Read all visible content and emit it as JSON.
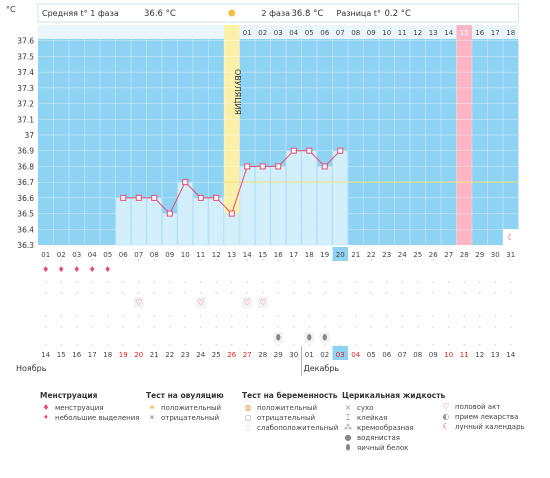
{
  "header": {
    "phase1_label": "Средняя t° 1 фаза",
    "phase1_value": "36.6 °C",
    "phase2_label": "2 фаза",
    "phase2_value": "36.8 °C",
    "diff_label": "Разница t°",
    "diff_value": "0.2 °C"
  },
  "chart_data": {
    "type": "line",
    "ylabel": "°C",
    "ylim": [
      36.3,
      37.7
    ],
    "y_ticks": [
      "37.6",
      "37.5",
      "37.4",
      "37.3",
      "37.2",
      "37.1",
      "37",
      "36.9",
      "36.8",
      "36.7",
      "36.6",
      "36.5",
      "36.4",
      "36.3"
    ],
    "coverline": 36.7,
    "ovulation_label": "ОВУЛЯЦИЯ",
    "top_days": [
      "",
      "",
      "",
      "",
      "",
      "",
      "",
      "",
      "",
      "",
      "",
      "",
      "",
      "01",
      "02",
      "03",
      "04",
      "05",
      "06",
      "07",
      "08",
      "09",
      "10",
      "11",
      "12",
      "13",
      "14",
      "15",
      "16",
      "17",
      "18"
    ],
    "bottom_days": [
      "01",
      "02",
      "03",
      "04",
      "05",
      "06",
      "07",
      "08",
      "09",
      "10",
      "11",
      "12",
      "13",
      "14",
      "15",
      "16",
      "17",
      "18",
      "19",
      "20",
      "21",
      "22",
      "23",
      "24",
      "25",
      "26",
      "27",
      "28",
      "29",
      "30",
      "31"
    ],
    "calendar_days": [
      "14",
      "15",
      "16",
      "17",
      "18",
      "19",
      "20",
      "21",
      "22",
      "23",
      "24",
      "25",
      "26",
      "27",
      "28",
      "29",
      "30",
      "01",
      "02",
      "03",
      "04",
      "05",
      "06",
      "07",
      "08",
      "09",
      "10",
      "11",
      "12",
      "13",
      "14"
    ],
    "series": [
      {
        "values": [
          null,
          null,
          null,
          null,
          null,
          36.6,
          36.6,
          36.6,
          36.5,
          36.7,
          36.6,
          36.6,
          36.5,
          36.8,
          36.8,
          36.8,
          36.9,
          36.9,
          36.8,
          36.9,
          null,
          null,
          null,
          null,
          null,
          null,
          null,
          null,
          null,
          null,
          null
        ]
      }
    ]
  },
  "colors": {
    "sky": "#8fd3f4",
    "bar": "#d4effc",
    "ovulation": "#faf0a8",
    "pink": "#fbb6c6",
    "accent": "#e84b6e",
    "today": "#8fd3f4",
    "red_day": "#e02020"
  },
  "footer": {
    "month1": "Ноябрь",
    "month2": "Декабрь"
  },
  "legend": {
    "menstruation": {
      "title": "Менструация",
      "items": [
        "менструация",
        "небольшие выделения"
      ]
    },
    "ovulation_test": {
      "title": "Тест на овуляцию",
      "items": [
        "положительный",
        "отрицательный"
      ]
    },
    "pregnancy_test": {
      "title": "Тест на беременность",
      "items": [
        "положительный",
        "отрицательный",
        "слабоположительный"
      ]
    },
    "cervical": {
      "title": "Церикальная жидкость",
      "items": [
        "сухо",
        "клейкая",
        "кремообразная",
        "водянистая",
        "яичный белок"
      ]
    },
    "other": {
      "items": [
        "половой акт",
        "прием лекарства",
        "лунный календарь"
      ]
    }
  }
}
